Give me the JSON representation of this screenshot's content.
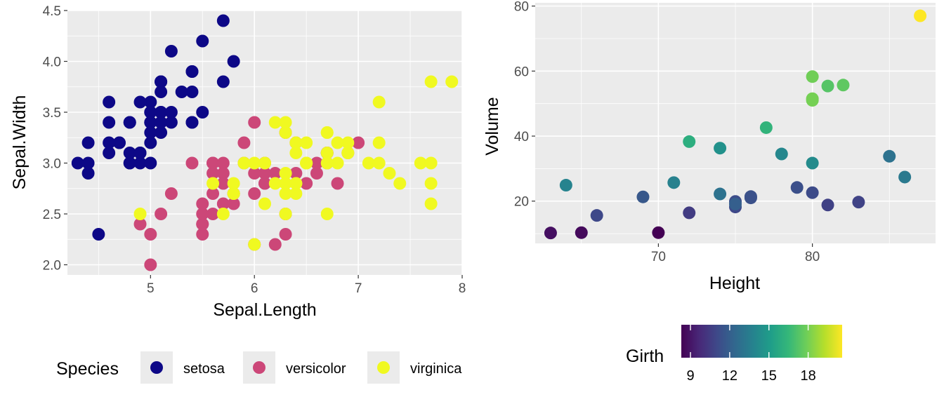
{
  "chart_data": [
    {
      "type": "scatter",
      "xlabel": "Sepal.Length",
      "ylabel": "Sepal.Width",
      "xlim": [
        4.2,
        8.0
      ],
      "ylim": [
        1.9,
        4.5
      ],
      "xticks": [
        {
          "value": 5,
          "label": "5"
        },
        {
          "value": 6,
          "label": "6"
        },
        {
          "value": 7,
          "label": "7"
        },
        {
          "value": 8,
          "label": "8"
        }
      ],
      "yticks": [
        {
          "value": 2.0,
          "label": "2.0"
        },
        {
          "value": 2.5,
          "label": "2.5"
        },
        {
          "value": 3.0,
          "label": "3.0"
        },
        {
          "value": 3.5,
          "label": "3.5"
        },
        {
          "value": 4.0,
          "label": "4.0"
        },
        {
          "value": 4.5,
          "label": "4.5"
        }
      ],
      "grid": true,
      "legend": {
        "title": "Species",
        "position": "bottom",
        "entries": [
          {
            "label": "setosa",
            "color": "#0d0887"
          },
          {
            "label": "versicolor",
            "color": "#cc4778"
          },
          {
            "label": "virginica",
            "color": "#f0f921"
          }
        ]
      },
      "series": [
        {
          "name": "setosa",
          "color": "#0d0887",
          "points": [
            [
              5.1,
              3.5
            ],
            [
              4.9,
              3.0
            ],
            [
              4.7,
              3.2
            ],
            [
              4.6,
              3.1
            ],
            [
              5.0,
              3.6
            ],
            [
              5.4,
              3.9
            ],
            [
              4.6,
              3.4
            ],
            [
              5.0,
              3.4
            ],
            [
              4.4,
              2.9
            ],
            [
              4.9,
              3.1
            ],
            [
              5.4,
              3.7
            ],
            [
              4.8,
              3.4
            ],
            [
              4.8,
              3.0
            ],
            [
              4.3,
              3.0
            ],
            [
              5.8,
              4.0
            ],
            [
              5.7,
              4.4
            ],
            [
              5.4,
              3.9
            ],
            [
              5.1,
              3.5
            ],
            [
              5.7,
              3.8
            ],
            [
              5.1,
              3.8
            ],
            [
              5.4,
              3.4
            ],
            [
              5.1,
              3.7
            ],
            [
              4.6,
              3.6
            ],
            [
              5.1,
              3.3
            ],
            [
              4.8,
              3.4
            ],
            [
              5.0,
              3.0
            ],
            [
              5.0,
              3.4
            ],
            [
              5.2,
              3.5
            ],
            [
              5.2,
              3.4
            ],
            [
              4.7,
              3.2
            ],
            [
              4.8,
              3.1
            ],
            [
              5.4,
              3.4
            ],
            [
              5.2,
              4.1
            ],
            [
              5.5,
              4.2
            ],
            [
              4.9,
              3.1
            ],
            [
              5.0,
              3.2
            ],
            [
              5.5,
              3.5
            ],
            [
              4.9,
              3.6
            ],
            [
              4.4,
              3.0
            ],
            [
              5.1,
              3.4
            ],
            [
              5.0,
              3.5
            ],
            [
              4.5,
              2.3
            ],
            [
              4.4,
              3.2
            ],
            [
              5.0,
              3.5
            ],
            [
              5.1,
              3.8
            ],
            [
              4.8,
              3.0
            ],
            [
              5.1,
              3.8
            ],
            [
              4.6,
              3.2
            ],
            [
              5.3,
              3.7
            ],
            [
              5.0,
              3.3
            ]
          ]
        },
        {
          "name": "versicolor",
          "color": "#cc4778",
          "points": [
            [
              7.0,
              3.2
            ],
            [
              6.4,
              3.2
            ],
            [
              6.9,
              3.1
            ],
            [
              5.5,
              2.3
            ],
            [
              6.5,
              2.8
            ],
            [
              5.7,
              2.8
            ],
            [
              6.3,
              3.3
            ],
            [
              4.9,
              2.4
            ],
            [
              6.6,
              2.9
            ],
            [
              5.2,
              2.7
            ],
            [
              5.0,
              2.0
            ],
            [
              5.9,
              3.0
            ],
            [
              6.0,
              2.2
            ],
            [
              6.1,
              2.9
            ],
            [
              5.6,
              2.9
            ],
            [
              6.7,
              3.1
            ],
            [
              5.6,
              3.0
            ],
            [
              5.8,
              2.7
            ],
            [
              6.2,
              2.2
            ],
            [
              5.6,
              2.5
            ],
            [
              5.9,
              3.2
            ],
            [
              6.1,
              2.8
            ],
            [
              6.3,
              2.5
            ],
            [
              6.1,
              2.8
            ],
            [
              6.4,
              2.9
            ],
            [
              6.6,
              3.0
            ],
            [
              6.8,
              2.8
            ],
            [
              6.7,
              3.0
            ],
            [
              6.0,
              2.9
            ],
            [
              5.7,
              2.6
            ],
            [
              5.5,
              2.4
            ],
            [
              5.5,
              2.4
            ],
            [
              5.8,
              2.7
            ],
            [
              6.0,
              2.7
            ],
            [
              5.4,
              3.0
            ],
            [
              6.0,
              3.4
            ],
            [
              6.7,
              3.1
            ],
            [
              6.3,
              2.3
            ],
            [
              5.6,
              3.0
            ],
            [
              5.5,
              2.5
            ],
            [
              5.5,
              2.6
            ],
            [
              6.1,
              3.0
            ],
            [
              5.8,
              2.6
            ],
            [
              5.0,
              2.3
            ],
            [
              5.6,
              2.7
            ],
            [
              5.7,
              3.0
            ],
            [
              5.7,
              2.9
            ],
            [
              6.2,
              2.9
            ],
            [
              5.1,
              2.5
            ],
            [
              5.7,
              2.8
            ]
          ]
        },
        {
          "name": "virginica",
          "color": "#f0f921",
          "points": [
            [
              6.3,
              3.3
            ],
            [
              5.8,
              2.7
            ],
            [
              7.1,
              3.0
            ],
            [
              6.3,
              2.9
            ],
            [
              6.5,
              3.0
            ],
            [
              7.6,
              3.0
            ],
            [
              4.9,
              2.5
            ],
            [
              7.3,
              2.9
            ],
            [
              6.7,
              2.5
            ],
            [
              7.2,
              3.6
            ],
            [
              6.5,
              3.2
            ],
            [
              6.4,
              2.7
            ],
            [
              6.8,
              3.0
            ],
            [
              5.7,
              2.5
            ],
            [
              5.8,
              2.8
            ],
            [
              6.4,
              3.2
            ],
            [
              6.5,
              3.0
            ],
            [
              7.7,
              3.8
            ],
            [
              7.7,
              2.6
            ],
            [
              6.0,
              2.2
            ],
            [
              6.9,
              3.2
            ],
            [
              5.6,
              2.8
            ],
            [
              7.7,
              2.8
            ],
            [
              6.3,
              2.7
            ],
            [
              6.7,
              3.3
            ],
            [
              7.2,
              3.2
            ],
            [
              6.2,
              2.8
            ],
            [
              6.1,
              3.0
            ],
            [
              6.4,
              2.8
            ],
            [
              7.2,
              3.0
            ],
            [
              7.4,
              2.8
            ],
            [
              7.9,
              3.8
            ],
            [
              6.4,
              2.8
            ],
            [
              6.3,
              2.8
            ],
            [
              6.1,
              2.6
            ],
            [
              7.7,
              3.0
            ],
            [
              6.3,
              3.4
            ],
            [
              6.4,
              3.1
            ],
            [
              6.0,
              3.0
            ],
            [
              6.9,
              3.1
            ],
            [
              6.7,
              3.1
            ],
            [
              6.9,
              3.1
            ],
            [
              5.8,
              2.7
            ],
            [
              6.8,
              3.2
            ],
            [
              6.7,
              3.3
            ],
            [
              6.7,
              3.0
            ],
            [
              6.3,
              2.5
            ],
            [
              6.5,
              3.0
            ],
            [
              6.2,
              3.4
            ],
            [
              5.9,
              3.0
            ]
          ]
        }
      ]
    },
    {
      "type": "scatter",
      "xlabel": "Height",
      "ylabel": "Volume",
      "xlim": [
        62,
        88
      ],
      "ylim": [
        7,
        81
      ],
      "xticks": [
        {
          "value": 70,
          "label": "70"
        },
        {
          "value": 80,
          "label": "80"
        }
      ],
      "yticks": [
        {
          "value": 20,
          "label": "20"
        },
        {
          "value": 40,
          "label": "40"
        },
        {
          "value": 60,
          "label": "60"
        },
        {
          "value": 80,
          "label": "80"
        }
      ],
      "grid": true,
      "color_scale": {
        "variable": "Girth",
        "palette": "viridis",
        "stops": [
          "#440154",
          "#482878",
          "#3e4989",
          "#31688e",
          "#26828e",
          "#1f9e89",
          "#35b779",
          "#6ece58",
          "#b5de2b",
          "#fde725"
        ],
        "range": [
          8.3,
          20.6
        ],
        "ticks": [
          {
            "value": 9,
            "label": "9"
          },
          {
            "value": 12,
            "label": "12"
          },
          {
            "value": 15,
            "label": "15"
          },
          {
            "value": 18,
            "label": "18"
          }
        ]
      },
      "legend": {
        "title": "Girth",
        "position": "bottom"
      },
      "points": [
        {
          "x": 70,
          "y": 10.3,
          "girth": 8.3
        },
        {
          "x": 65,
          "y": 10.3,
          "girth": 8.6
        },
        {
          "x": 63,
          "y": 10.2,
          "girth": 8.8
        },
        {
          "x": 72,
          "y": 16.4,
          "girth": 10.5
        },
        {
          "x": 81,
          "y": 18.8,
          "girth": 10.7
        },
        {
          "x": 83,
          "y": 19.7,
          "girth": 10.8
        },
        {
          "x": 66,
          "y": 15.6,
          "girth": 11.0
        },
        {
          "x": 75,
          "y": 18.2,
          "girth": 11.0
        },
        {
          "x": 80,
          "y": 22.6,
          "girth": 11.1
        },
        {
          "x": 75,
          "y": 19.9,
          "girth": 11.2
        },
        {
          "x": 79,
          "y": 24.2,
          "girth": 11.3
        },
        {
          "x": 76,
          "y": 21.0,
          "girth": 11.4
        },
        {
          "x": 76,
          "y": 21.4,
          "girth": 11.4
        },
        {
          "x": 69,
          "y": 21.3,
          "girth": 11.7
        },
        {
          "x": 75,
          "y": 19.1,
          "girth": 12.0
        },
        {
          "x": 74,
          "y": 22.2,
          "girth": 12.9
        },
        {
          "x": 85,
          "y": 33.8,
          "girth": 12.9
        },
        {
          "x": 86,
          "y": 27.4,
          "girth": 13.3
        },
        {
          "x": 71,
          "y": 25.7,
          "girth": 13.7
        },
        {
          "x": 64,
          "y": 24.9,
          "girth": 13.8
        },
        {
          "x": 78,
          "y": 34.5,
          "girth": 14.0
        },
        {
          "x": 80,
          "y": 31.7,
          "girth": 14.2
        },
        {
          "x": 74,
          "y": 36.3,
          "girth": 14.5
        },
        {
          "x": 72,
          "y": 38.3,
          "girth": 16.0
        },
        {
          "x": 77,
          "y": 42.6,
          "girth": 16.3
        },
        {
          "x": 81,
          "y": 55.4,
          "girth": 17.3
        },
        {
          "x": 82,
          "y": 55.7,
          "girth": 17.5
        },
        {
          "x": 80,
          "y": 58.3,
          "girth": 17.9
        },
        {
          "x": 80,
          "y": 51.5,
          "girth": 18.0
        },
        {
          "x": 80,
          "y": 51.0,
          "girth": 18.0
        },
        {
          "x": 87,
          "y": 77.0,
          "girth": 20.6
        }
      ]
    }
  ]
}
